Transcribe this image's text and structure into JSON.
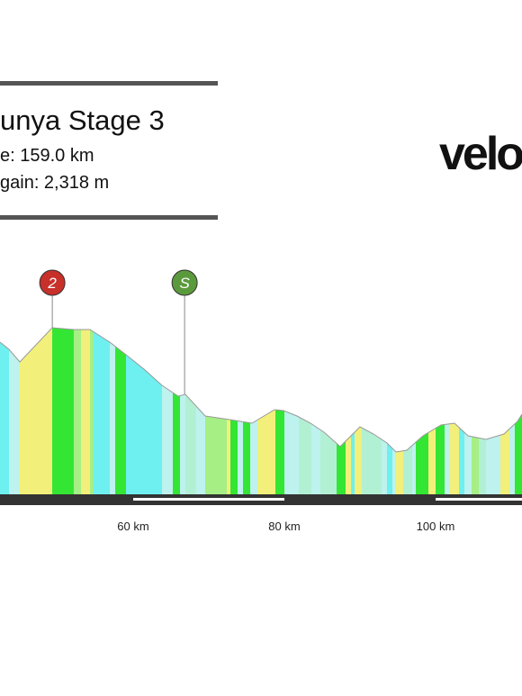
{
  "header": {
    "title": "unya Stage 3",
    "distance": "e: 159.0 km",
    "gain": "gain: 2,318 m"
  },
  "logo": "velo",
  "chart_data": {
    "type": "profile",
    "markers": [
      {
        "label": "2",
        "km": 49.3,
        "color": "#c8302a"
      },
      {
        "label": "S",
        "km": 66.8,
        "color": "#5b9a3c"
      }
    ],
    "xticks": [
      {
        "value": 60,
        "label": "60 km"
      },
      {
        "value": 80,
        "label": "80 km"
      },
      {
        "value": 100,
        "label": "100 km"
      }
    ]
  }
}
